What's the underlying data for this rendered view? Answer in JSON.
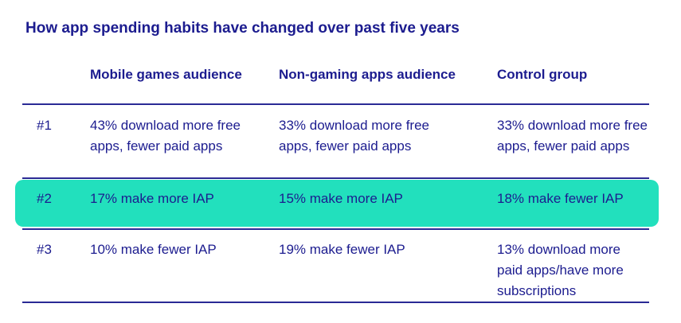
{
  "title": "How app spending habits have changed over past five years",
  "headers": [
    "Mobile games audience",
    "Non-gaming apps audience",
    "Control group"
  ],
  "rows": [
    {
      "rank": "#1",
      "cells": [
        "43% download more free apps, fewer paid apps",
        "33% download more free apps, fewer paid apps",
        "33% download more free apps, fewer paid apps"
      ],
      "highlighted": false
    },
    {
      "rank": "#2",
      "cells": [
        "17% make more IAP",
        "15% make more IAP",
        "18% make fewer IAP"
      ],
      "highlighted": true
    },
    {
      "rank": "#3",
      "cells": [
        "10% make fewer IAP",
        "19% make fewer IAP",
        "13% download more paid apps/have more subscriptions"
      ],
      "highlighted": false
    }
  ],
  "colors": {
    "text": "#1c1c8f",
    "highlight": "#22e0bd"
  }
}
